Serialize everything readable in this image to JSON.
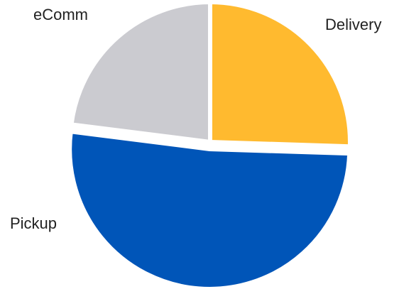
{
  "chart_data": {
    "type": "pie",
    "slices": [
      {
        "label": "Delivery",
        "value": 25.5,
        "color": "#FFBA2F"
      },
      {
        "label": "Pickup",
        "value": 51.5,
        "color": "#0055B8"
      },
      {
        "label": "eComm",
        "value": 23.0,
        "color": "#CBCBD0"
      }
    ],
    "exploded_slice": "Pickup",
    "start_angle_deg": 0,
    "direction": "clockwise",
    "legend": "none"
  }
}
